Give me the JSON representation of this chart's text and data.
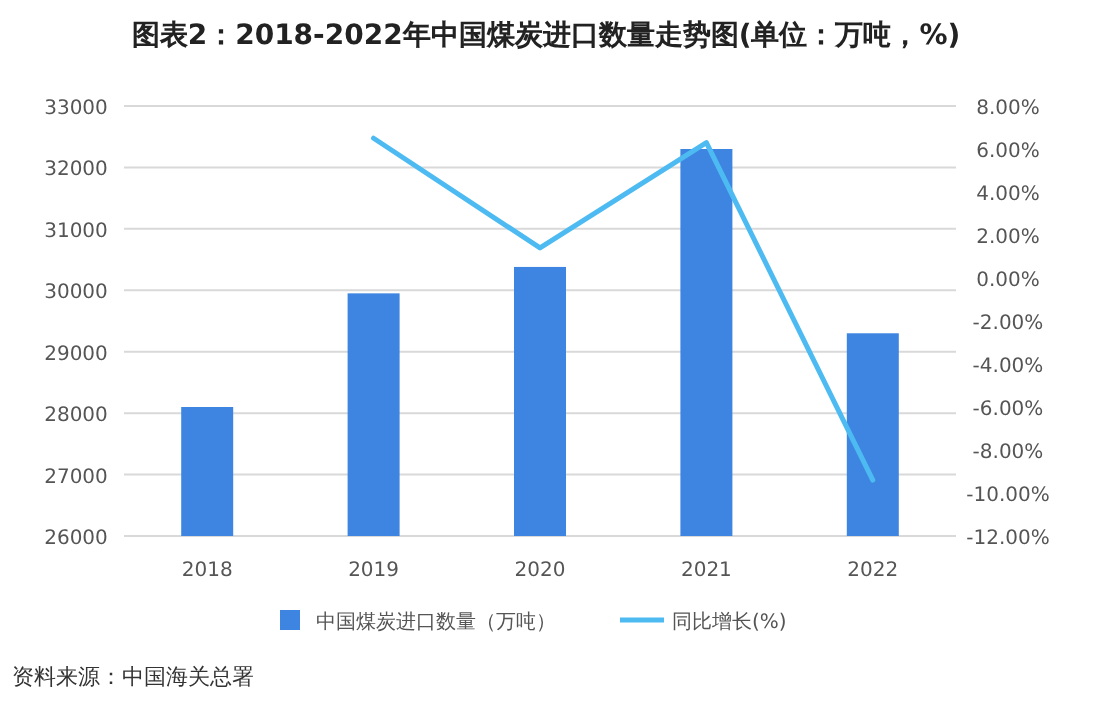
{
  "chart_data": {
    "type": "bar",
    "title": "图表2：2018-2022年中国煤炭进口数量走势图(单位：万吨，%)",
    "categories": [
      "2018",
      "2019",
      "2020",
      "2021",
      "2022"
    ],
    "series": [
      {
        "name": "中国煤炭进口数量（万吨）",
        "color": "#3d85e0",
        "values": [
          28100,
          29950,
          30380,
          32300,
          29300
        ]
      },
      {
        "name": "同比增长(%)",
        "type": "line",
        "axis": "y2",
        "color": "#4dbbf2",
        "values": [
          null,
          6.5,
          1.4,
          6.3,
          -9.4
        ]
      }
    ],
    "ylim": [
      26000,
      33000
    ],
    "yticks": [
      26000,
      27000,
      28000,
      29000,
      30000,
      31000,
      32000,
      33000
    ],
    "y2lim": [
      -12,
      8
    ],
    "y2ticks": [
      {
        "value": -12,
        "label": "-12.00%"
      },
      {
        "value": -10,
        "label": "-10.00%"
      },
      {
        "value": -8,
        "label": "-8.00%"
      },
      {
        "value": -6,
        "label": "-6.00%"
      },
      {
        "value": -4,
        "label": "-4.00%"
      },
      {
        "value": -2,
        "label": "-2.00%"
      },
      {
        "value": 0,
        "label": "0.00%"
      },
      {
        "value": 2,
        "label": "2.00%"
      },
      {
        "value": 4,
        "label": "4.00%"
      },
      {
        "value": 6,
        "label": "6.00%"
      },
      {
        "value": 8,
        "label": "8.00%"
      }
    ],
    "grid": "y",
    "legend": "bottom",
    "annotations": [
      "资料来源：中国海关总署"
    ]
  }
}
